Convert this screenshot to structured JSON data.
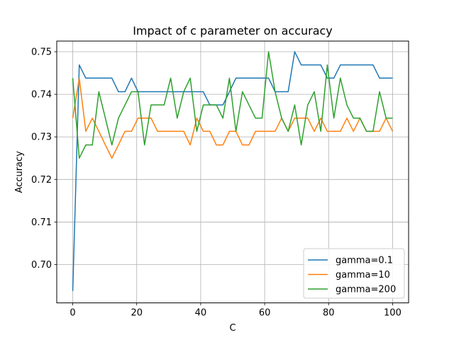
{
  "chart_data": {
    "type": "line",
    "title": "Impact of c parameter on accuracy",
    "xlabel": "C",
    "ylabel": "Accuracy",
    "xlim": [
      -5,
      105
    ],
    "ylim": [
      0.691,
      0.7525
    ],
    "xticks": [
      0,
      20,
      40,
      60,
      80,
      100
    ],
    "yticks": [
      0.7,
      0.71,
      0.72,
      0.73,
      0.74,
      0.75
    ],
    "xtick_labels": [
      "0",
      "20",
      "40",
      "60",
      "80",
      "100"
    ],
    "ytick_labels": [
      "0.70",
      "0.71",
      "0.72",
      "0.73",
      "0.74",
      "0.75"
    ],
    "grid": true,
    "legend_position": "lower-right",
    "x": [
      0,
      2.04,
      4.08,
      6.12,
      8.16,
      10.2,
      12.24,
      14.29,
      16.33,
      18.37,
      20.41,
      22.45,
      24.49,
      26.53,
      28.57,
      30.61,
      32.65,
      34.69,
      36.73,
      38.78,
      40.82,
      42.86,
      44.9,
      46.94,
      48.98,
      51.02,
      53.06,
      55.1,
      57.14,
      59.18,
      61.22,
      63.27,
      65.31,
      67.35,
      69.39,
      71.43,
      73.47,
      75.51,
      77.55,
      79.59,
      81.63,
      83.67,
      85.71,
      87.76,
      89.8,
      91.84,
      93.88,
      95.92,
      97.96,
      100
    ],
    "series": [
      {
        "name": "gamma=0.1",
        "color": "#1f77b4",
        "values": [
          0.6938,
          0.7469,
          0.7438,
          0.7438,
          0.7438,
          0.7438,
          0.7438,
          0.7406,
          0.7406,
          0.7438,
          0.7406,
          0.7406,
          0.7406,
          0.7406,
          0.7406,
          0.7406,
          0.7406,
          0.7406,
          0.7406,
          0.7406,
          0.7406,
          0.7375,
          0.7375,
          0.7375,
          0.7406,
          0.7438,
          0.7438,
          0.7438,
          0.7438,
          0.7438,
          0.7438,
          0.7406,
          0.7406,
          0.7406,
          0.75,
          0.7469,
          0.7469,
          0.7469,
          0.7469,
          0.7438,
          0.7438,
          0.7469,
          0.7469,
          0.7469,
          0.7469,
          0.7469,
          0.7469,
          0.7438,
          0.7438,
          0.7438
        ]
      },
      {
        "name": "gamma=10",
        "color": "#ff7f0e",
        "values": [
          0.7344,
          0.7438,
          0.7313,
          0.7344,
          0.7313,
          0.7281,
          0.725,
          0.7281,
          0.7313,
          0.7313,
          0.7344,
          0.7344,
          0.7344,
          0.7313,
          0.7313,
          0.7313,
          0.7313,
          0.7313,
          0.7281,
          0.7344,
          0.7313,
          0.7313,
          0.7281,
          0.7281,
          0.7313,
          0.7313,
          0.7281,
          0.7281,
          0.7313,
          0.7313,
          0.7313,
          0.7313,
          0.7344,
          0.7313,
          0.7344,
          0.7344,
          0.7344,
          0.7313,
          0.7344,
          0.7313,
          0.7313,
          0.7313,
          0.7344,
          0.7313,
          0.7344,
          0.7313,
          0.7313,
          0.7313,
          0.7344,
          0.7313
        ]
      },
      {
        "name": "gamma=200",
        "color": "#2ca02c",
        "values": [
          0.7438,
          0.725,
          0.7281,
          0.7281,
          0.7406,
          0.7344,
          0.7281,
          0.7344,
          0.7375,
          0.7406,
          0.7406,
          0.7281,
          0.7375,
          0.7375,
          0.7375,
          0.7438,
          0.7344,
          0.7406,
          0.7438,
          0.7313,
          0.7375,
          0.7375,
          0.7375,
          0.7344,
          0.7438,
          0.7313,
          0.7406,
          0.7375,
          0.7344,
          0.7344,
          0.75,
          0.7406,
          0.7344,
          0.7313,
          0.7375,
          0.7281,
          0.7375,
          0.7406,
          0.7313,
          0.7469,
          0.7344,
          0.7438,
          0.7375,
          0.7344,
          0.7344,
          0.7313,
          0.7313,
          0.7406,
          0.7344,
          0.7344
        ]
      }
    ]
  }
}
